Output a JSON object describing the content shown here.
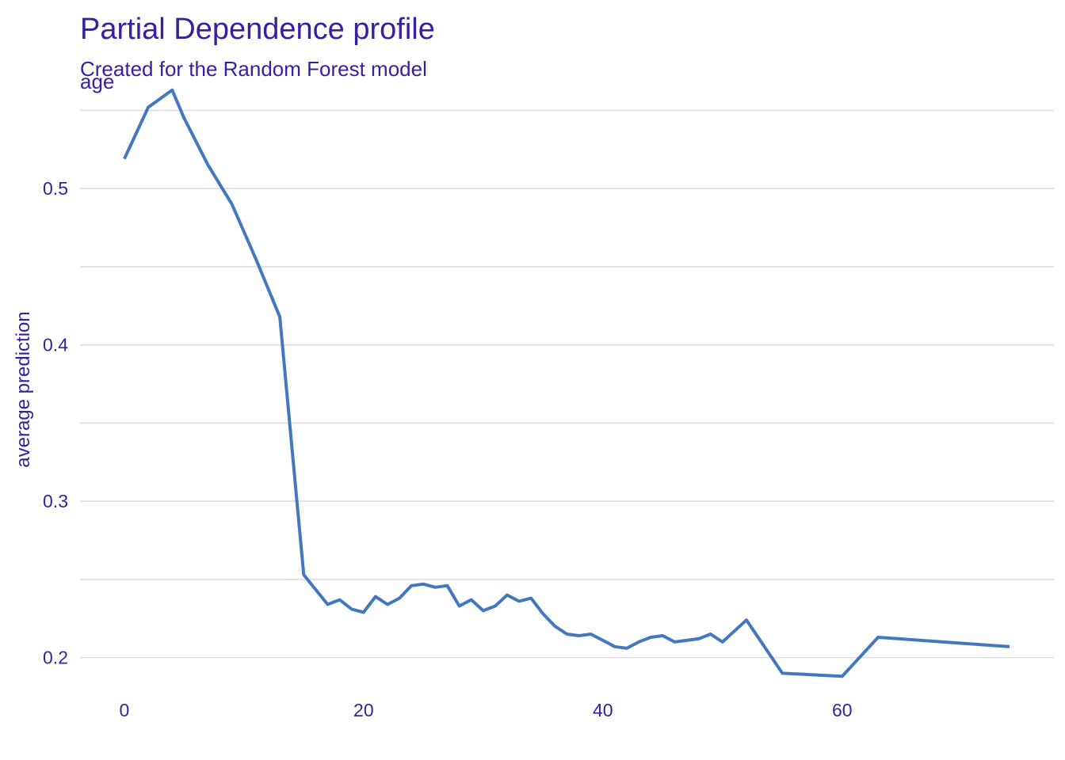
{
  "colors": {
    "text": "#371EA3",
    "line": "#4378BF",
    "grid": "#DEDEDE",
    "background": "#FFFFFF"
  },
  "chart_data": {
    "type": "line",
    "title": "Partial Dependence profile",
    "subtitle": "Created for the Random Forest model",
    "facet_label": "age",
    "xlabel": "",
    "ylabel": "average prediction",
    "xlim": [
      -3.7,
      77.7
    ],
    "ylim": [
      0.175,
      0.57
    ],
    "x_ticks": [
      0,
      20,
      40,
      60
    ],
    "x_tick_labels": [
      "0",
      "20",
      "40",
      "60"
    ],
    "y_ticks": [
      0.2,
      0.3,
      0.4,
      0.5
    ],
    "y_tick_labels": [
      "0.2",
      "0.3",
      "0.4",
      "0.5"
    ],
    "y_minor_ticks": [
      0.25,
      0.35,
      0.45,
      0.55
    ],
    "grid": "horizontal",
    "series": [
      {
        "name": "age",
        "x": [
          0,
          2,
          4,
          5,
          7,
          9,
          11,
          13,
          15,
          17,
          18,
          19,
          20,
          21,
          22,
          23,
          24,
          25,
          26,
          27,
          28,
          29,
          30,
          31,
          32,
          33,
          34,
          35,
          36,
          37,
          38,
          39,
          40,
          41,
          42,
          43,
          44,
          45,
          46,
          47,
          48,
          49,
          50,
          52,
          55,
          60,
          63,
          74
        ],
        "y": [
          0.519,
          0.552,
          0.563,
          0.545,
          0.515,
          0.49,
          0.455,
          0.418,
          0.253,
          0.234,
          0.237,
          0.231,
          0.229,
          0.239,
          0.234,
          0.238,
          0.246,
          0.247,
          0.245,
          0.246,
          0.233,
          0.237,
          0.23,
          0.233,
          0.24,
          0.236,
          0.238,
          0.228,
          0.22,
          0.215,
          0.214,
          0.215,
          0.211,
          0.207,
          0.206,
          0.21,
          0.213,
          0.214,
          0.21,
          0.211,
          0.212,
          0.215,
          0.21,
          0.224,
          0.19,
          0.188,
          0.213,
          0.207
        ]
      }
    ]
  }
}
